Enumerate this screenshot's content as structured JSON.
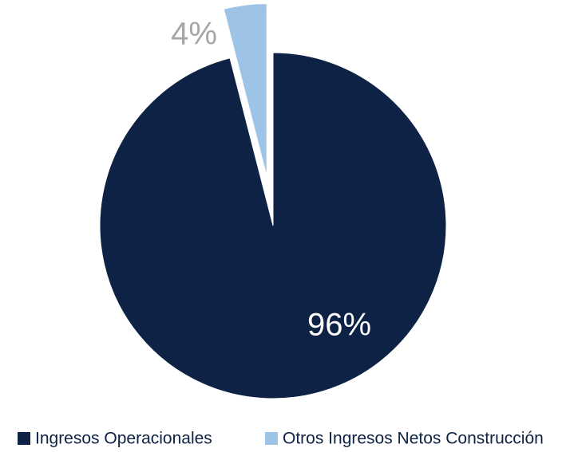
{
  "chart_data": {
    "type": "pie",
    "categories": [
      "Ingresos Operacionales",
      "Otros Ingresos Netos Construcción"
    ],
    "values": [
      96,
      4
    ],
    "value_labels": [
      "96%",
      "4%"
    ],
    "colors": [
      "#0d2244",
      "#9dc3e6"
    ],
    "label_colors": [
      "#ffffff",
      "#a6a6a6"
    ],
    "legend": "bottom"
  }
}
